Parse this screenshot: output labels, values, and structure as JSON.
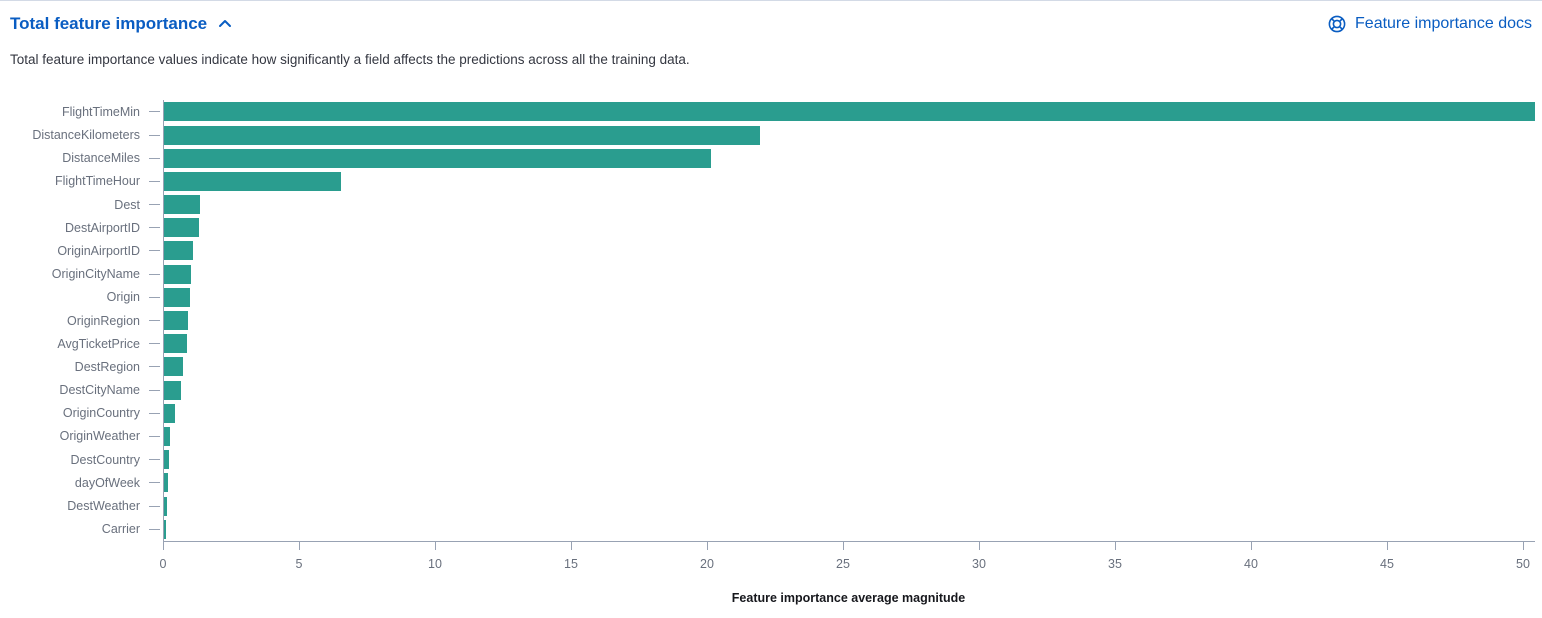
{
  "header": {
    "title": "Total feature importance",
    "collapse_icon": "chevron-up-icon",
    "docs_link_label": "Feature importance docs",
    "docs_icon": "lifebuoy-docs-icon"
  },
  "description": "Total feature importance values indicate how significantly a field affects the predictions across all the training data.",
  "colors": {
    "accent_blue": "#0A5DC2",
    "bar_fill": "#2A9D8F",
    "axis_text": "#69707D",
    "axis_line": "#98A2B3",
    "body_text": "#343741"
  },
  "chart_data": {
    "type": "bar",
    "orientation": "horizontal",
    "title": "",
    "xlabel": "Feature importance average magnitude",
    "ylabel": "",
    "categories": [
      "FlightTimeMin",
      "DistanceKilometers",
      "DistanceMiles",
      "FlightTimeHour",
      "Dest",
      "DestAirportID",
      "OriginAirportID",
      "OriginCityName",
      "Origin",
      "OriginRegion",
      "AvgTicketPrice",
      "DestRegion",
      "DestCityName",
      "OriginCountry",
      "OriginWeather",
      "DestCountry",
      "dayOfWeek",
      "DestWeather",
      "Carrier"
    ],
    "values": [
      50.4,
      21.9,
      20.1,
      6.5,
      1.33,
      1.29,
      1.08,
      0.98,
      0.95,
      0.89,
      0.84,
      0.71,
      0.61,
      0.4,
      0.21,
      0.17,
      0.15,
      0.12,
      0.08
    ],
    "x_ticks": [
      0,
      5,
      10,
      15,
      20,
      25,
      30,
      35,
      40,
      45,
      50
    ],
    "xlim": [
      0,
      50.4
    ],
    "grid": false,
    "legend": false,
    "bar_color": "#2A9D8F"
  }
}
